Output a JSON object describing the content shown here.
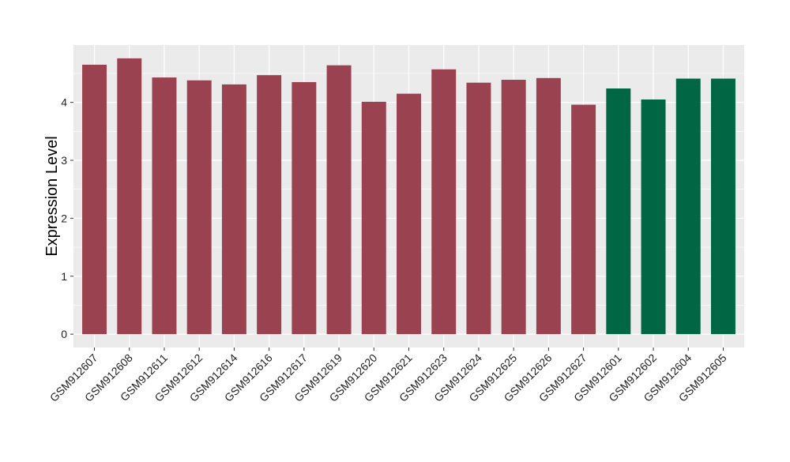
{
  "chart_data": {
    "type": "bar",
    "title": "",
    "xlabel": "",
    "ylabel": "Expression Level",
    "ylim": [
      -0.23,
      4.99
    ],
    "yticks": [
      0,
      1,
      2,
      3,
      4
    ],
    "grid": true,
    "categories": [
      "GSM912607",
      "GSM912608",
      "GSM912611",
      "GSM912612",
      "GSM912614",
      "GSM912616",
      "GSM912617",
      "GSM912619",
      "GSM912620",
      "GSM912621",
      "GSM912623",
      "GSM912624",
      "GSM912625",
      "GSM912626",
      "GSM912627",
      "GSM912601",
      "GSM912602",
      "GSM912604",
      "GSM912605"
    ],
    "values": [
      4.65,
      4.76,
      4.43,
      4.38,
      4.31,
      4.47,
      4.35,
      4.64,
      4.01,
      4.15,
      4.57,
      4.34,
      4.39,
      4.42,
      3.96,
      4.24,
      4.05,
      4.41,
      4.41
    ],
    "groups": [
      "a",
      "a",
      "a",
      "a",
      "a",
      "a",
      "a",
      "a",
      "a",
      "a",
      "a",
      "a",
      "a",
      "a",
      "a",
      "b",
      "b",
      "b",
      "b"
    ],
    "colors": {
      "a": "#9A4250",
      "b": "#006644"
    },
    "panel_background": "#EBEBEB"
  }
}
